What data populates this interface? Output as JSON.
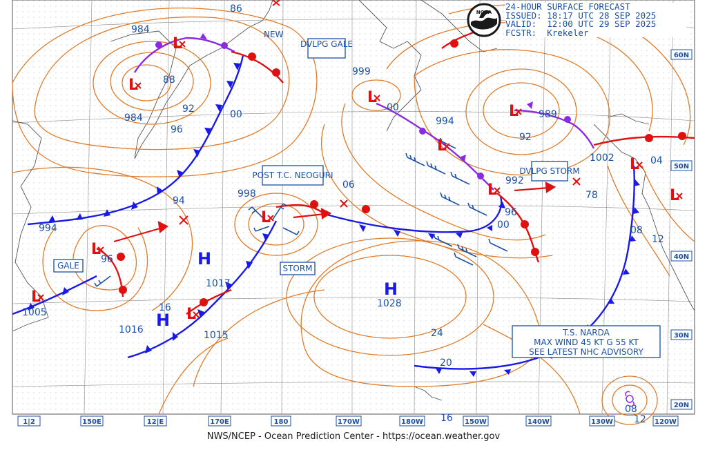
{
  "header": {
    "title": "24-HOUR SURFACE FORECAST",
    "issued": "ISSUED: 18:17 UTC 28 SEP 2025",
    "valid": "VALID:  12:00 UTC 29 SEP 2025",
    "forecaster": "FCSTR:  Krekeler",
    "logo_text": "NOAA"
  },
  "footer": "NWS/NCEP - Ocean Prediction Center - https://ocean.weather.gov",
  "longitude_labels": [
    "1|2",
    "150E",
    "12|E",
    "170E",
    "180",
    "170W",
    "180W",
    "150W",
    "140W",
    "130W",
    "120W"
  ],
  "latitude_labels": [
    "60N",
    "50N",
    "40N",
    "30N",
    "20N"
  ],
  "pressure_labels": [
    "86",
    "984",
    "88",
    "92",
    "984",
    "96",
    "00",
    "999",
    "00",
    "994",
    "989",
    "92",
    "1002",
    "04",
    "992",
    "96",
    "00",
    "78",
    "08",
    "12",
    "994",
    "94",
    "998",
    "06",
    "96",
    "1005",
    "1017",
    "1016",
    "16",
    "1015",
    "1028",
    "24",
    "20",
    "16",
    "08",
    "12"
  ],
  "warning_boxes": [
    "DVLPG GALE",
    "POST T.C. NEOGURI",
    "DVLPG STORM",
    "STORM",
    "GALE",
    "NEW"
  ],
  "highs": [
    "H",
    "H",
    "H"
  ],
  "lows": [
    "L",
    "L",
    "L",
    "L",
    "L",
    "L",
    "L",
    "L",
    "L",
    "L",
    "L",
    "L"
  ],
  "tropical_storm": {
    "name": "T.S. NARDA",
    "wind": "MAX WIND 45 KT G 55 KT",
    "advisory": "SEE LATEST NHC ADVISORY"
  },
  "colors": {
    "isobar": "#e07b28",
    "cold_front": "#1a1ae6",
    "warm_front": "#e01010",
    "occluded_front": "#8a2be2",
    "label": "#1a4fa3",
    "coast": "#666666"
  }
}
